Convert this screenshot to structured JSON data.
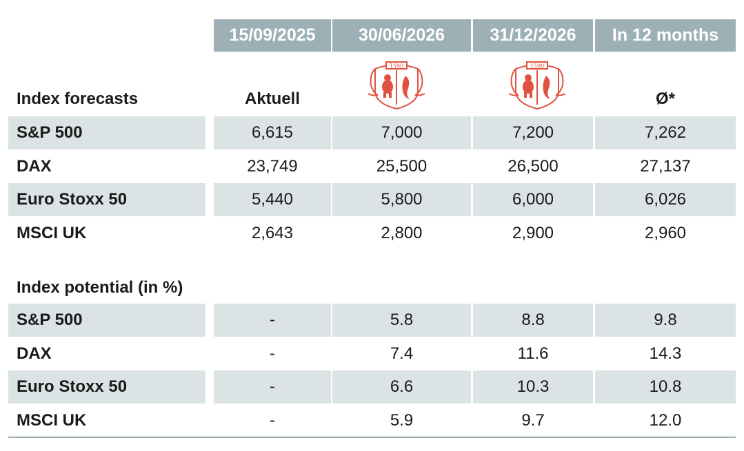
{
  "header": {
    "columns": [
      "15/09/2025",
      "30/06/2026",
      "31/12/2026",
      "In 12 months"
    ]
  },
  "subheader": {
    "current_label": "Aktuell",
    "avg_label": "Ø*",
    "logo_year": "1590"
  },
  "forecasts": {
    "title": "Index forecasts",
    "rows": [
      {
        "name": "S&P 500",
        "values": [
          "6,615",
          "7,000",
          "7,200",
          "7,262"
        ]
      },
      {
        "name": "DAX",
        "values": [
          "23,749",
          "25,500",
          "26,500",
          "27,137"
        ]
      },
      {
        "name": "Euro Stoxx 50",
        "values": [
          "5,440",
          "5,800",
          "6,000",
          "6,026"
        ]
      },
      {
        "name": "MSCI UK",
        "values": [
          "2,643",
          "2,800",
          "2,900",
          "2,960"
        ]
      }
    ]
  },
  "potential": {
    "title": "Index potential (in %)",
    "rows": [
      {
        "name": "S&P 500",
        "values": [
          "-",
          "5.8",
          "8.8",
          "9.8"
        ]
      },
      {
        "name": "DAX",
        "values": [
          "-",
          "7.4",
          "11.6",
          "14.3"
        ]
      },
      {
        "name": "Euro Stoxx 50",
        "values": [
          "-",
          "6.6",
          "10.3",
          "10.8"
        ]
      },
      {
        "name": "MSCI UK",
        "values": [
          "-",
          "5.9",
          "9.7",
          "12.0"
        ]
      }
    ]
  },
  "colors": {
    "header_bg": "#9db0b6",
    "row_shade": "#dbe3e5",
    "logo": "#e0523f"
  }
}
